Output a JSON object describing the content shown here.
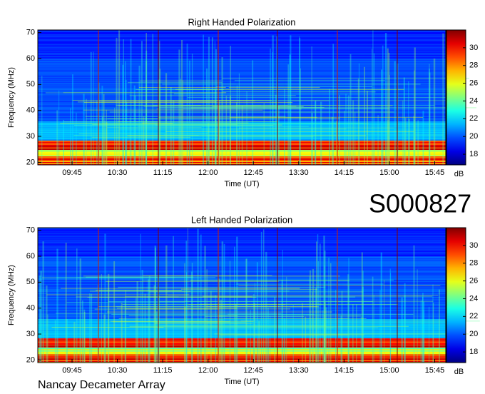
{
  "chart_data": [
    {
      "type": "heatmap",
      "title": "Right Handed Polarization",
      "xlabel": "Time (UT)",
      "ylabel": "Frequency (MHz)",
      "xlim": [
        551,
        956
      ],
      "xticks": [
        {
          "value": 585,
          "label": "09:45"
        },
        {
          "value": 630,
          "label": "10:30"
        },
        {
          "value": 675,
          "label": "11:15"
        },
        {
          "value": 720,
          "label": "12:00"
        },
        {
          "value": 765,
          "label": "12:45"
        },
        {
          "value": 810,
          "label": "13:30"
        },
        {
          "value": 855,
          "label": "14:15"
        },
        {
          "value": 900,
          "label": "15:00"
        },
        {
          "value": 945,
          "label": "15:45"
        }
      ],
      "ylim": [
        19,
        71
      ],
      "yticks": [
        20,
        30,
        40,
        50,
        60,
        70
      ],
      "colorbar_label": "dB",
      "clim": [
        16.8,
        32
      ],
      "cticks": [
        18,
        20,
        22,
        24,
        26,
        28,
        30
      ],
      "colormap": "jet"
    },
    {
      "type": "heatmap",
      "title": "Left Handed Polarization",
      "xlabel": "Time (UT)",
      "ylabel": "Frequency (MHz)",
      "xlim": [
        551,
        956
      ],
      "xticks": [
        {
          "value": 585,
          "label": "09:45"
        },
        {
          "value": 630,
          "label": "10:30"
        },
        {
          "value": 675,
          "label": "11:15"
        },
        {
          "value": 720,
          "label": "12:00"
        },
        {
          "value": 765,
          "label": "12:45"
        },
        {
          "value": 810,
          "label": "13:30"
        },
        {
          "value": 855,
          "label": "14:15"
        },
        {
          "value": 900,
          "label": "15:00"
        },
        {
          "value": 945,
          "label": "15:45"
        }
      ],
      "ylim": [
        19,
        71
      ],
      "yticks": [
        20,
        30,
        40,
        50,
        60,
        70
      ],
      "colorbar_label": "dB",
      "clim": [
        16.8,
        32
      ],
      "cticks": [
        18,
        20,
        22,
        24,
        26,
        28,
        30
      ],
      "colormap": "jet"
    }
  ],
  "file_id": "S000827",
  "instrument": "Nancay Decameter Array"
}
